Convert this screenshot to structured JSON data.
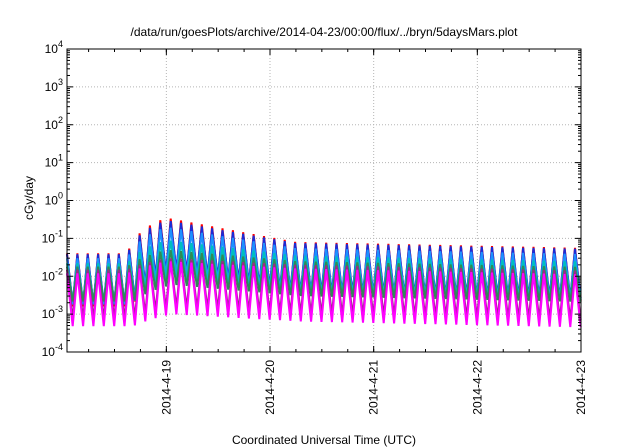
{
  "chart_data": {
    "type": "line",
    "title": "/data/run/goesPlots/archive/2014-04-23/00:00/flux/../bryn/5daysMars.plot",
    "xlabel": "Coordinated Universal Time (UTC)",
    "ylabel": "cGy/day",
    "y_scale": "log",
    "ylim": [
      0.0001,
      10000
    ],
    "y_ticks": [
      {
        "value": 0.0001,
        "base": "10",
        "exp": "-4"
      },
      {
        "value": 0.001,
        "base": "10",
        "exp": "-3"
      },
      {
        "value": 0.01,
        "base": "10",
        "exp": "-2"
      },
      {
        "value": 0.1,
        "base": "10",
        "exp": "-1"
      },
      {
        "value": 1,
        "base": "10",
        "exp": "0"
      },
      {
        "value": 10,
        "base": "10",
        "exp": "1"
      },
      {
        "value": 100,
        "base": "10",
        "exp": "2"
      },
      {
        "value": 1000,
        "base": "10",
        "exp": "3"
      },
      {
        "value": 10000,
        "base": "10",
        "exp": "4"
      }
    ],
    "xlim": [
      "2014-04-18 01:00",
      "2014-04-23 00:00"
    ],
    "x_ticks": [
      {
        "value": "2014-04-19",
        "label": "2014-4-19"
      },
      {
        "value": "2014-04-20",
        "label": "2014-4-20"
      },
      {
        "value": "2014-04-21",
        "label": "2014-4-21"
      },
      {
        "value": "2014-04-22",
        "label": "2014-4-22"
      },
      {
        "value": "2014-04-23",
        "label": "2014-4-23"
      }
    ],
    "x_tick_label_rotation": "vertical",
    "grid": true,
    "legend": "none",
    "sawtooth": {
      "period_hours": 2.4,
      "start": "2014-04-18 01:00",
      "event_start": "2014-04-18 15:00",
      "event_peak": "2014-04-19 00:00",
      "event_end": "2014-04-20 06:00"
    },
    "series": [
      {
        "color": "#ff0000",
        "base_max": 0.04,
        "event_max": 0.35,
        "later_max": 0.08,
        "min_ratio": 0.04
      },
      {
        "color": "#1a2bd6",
        "base_max": 0.038,
        "event_max": 0.3,
        "later_max": 0.075,
        "min_ratio": 0.05
      },
      {
        "color": "#1e90ff",
        "base_max": 0.03,
        "event_max": 0.2,
        "later_max": 0.055,
        "min_ratio": 0.06
      },
      {
        "color": "#00bfbf",
        "base_max": 0.022,
        "event_max": 0.09,
        "later_max": 0.035,
        "min_ratio": 0.1
      },
      {
        "color": "#2e8b57",
        "base_max": 0.018,
        "event_max": 0.05,
        "later_max": 0.025,
        "min_ratio": 0.12
      },
      {
        "color": "#9a2a8a",
        "base_max": 0.015,
        "event_max": 0.03,
        "later_max": 0.02,
        "min_ratio": 0.05
      },
      {
        "color": "#ff00ff",
        "base_max": 0.012,
        "event_max": 0.025,
        "later_max": 0.016,
        "min_ratio": 0.04
      }
    ]
  }
}
